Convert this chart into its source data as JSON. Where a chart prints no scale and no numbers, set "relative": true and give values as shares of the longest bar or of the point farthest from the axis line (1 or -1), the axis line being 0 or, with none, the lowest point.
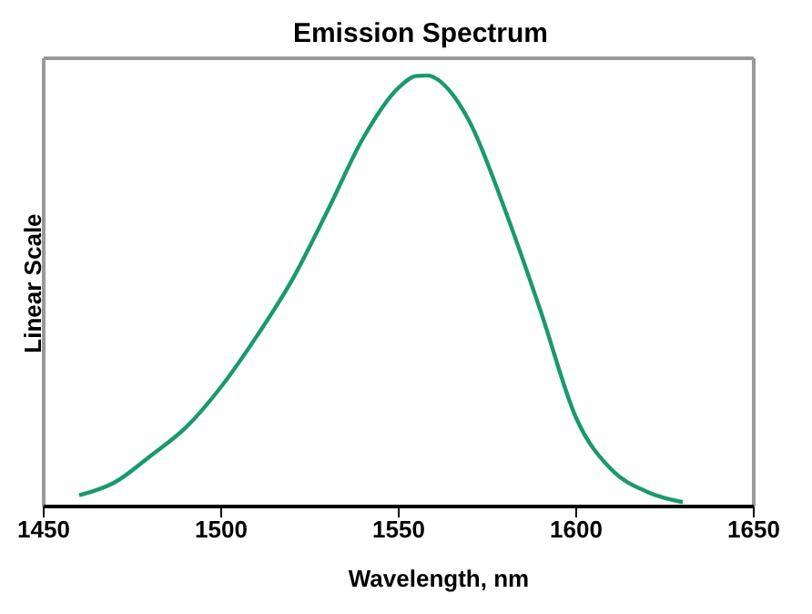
{
  "chart_data": {
    "type": "line",
    "title": "Emission Spectrum",
    "xlabel": "Wavelength, nm",
    "ylabel": "Linear Scale",
    "relative": true,
    "xlim": [
      1450,
      1650
    ],
    "xticks": [
      1450,
      1500,
      1550,
      1600,
      1650
    ],
    "grid": false,
    "marker": "none",
    "line_style": "solid",
    "series": [
      {
        "color": "#1a9a6c",
        "x": [
          1460,
          1470,
          1480,
          1490,
          1500,
          1510,
          1520,
          1530,
          1540,
          1550,
          1555,
          1558,
          1565,
          1570,
          1580,
          1590,
          1600,
          1610,
          1620,
          1630
        ],
        "values": [
          0.026,
          0.056,
          0.117,
          0.183,
          0.278,
          0.395,
          0.526,
          0.687,
          0.855,
          0.972,
          0.999,
          1,
          0.958,
          0.892,
          0.687,
          0.453,
          0.205,
          0.085,
          0.034,
          0.01
        ]
      }
    ]
  }
}
